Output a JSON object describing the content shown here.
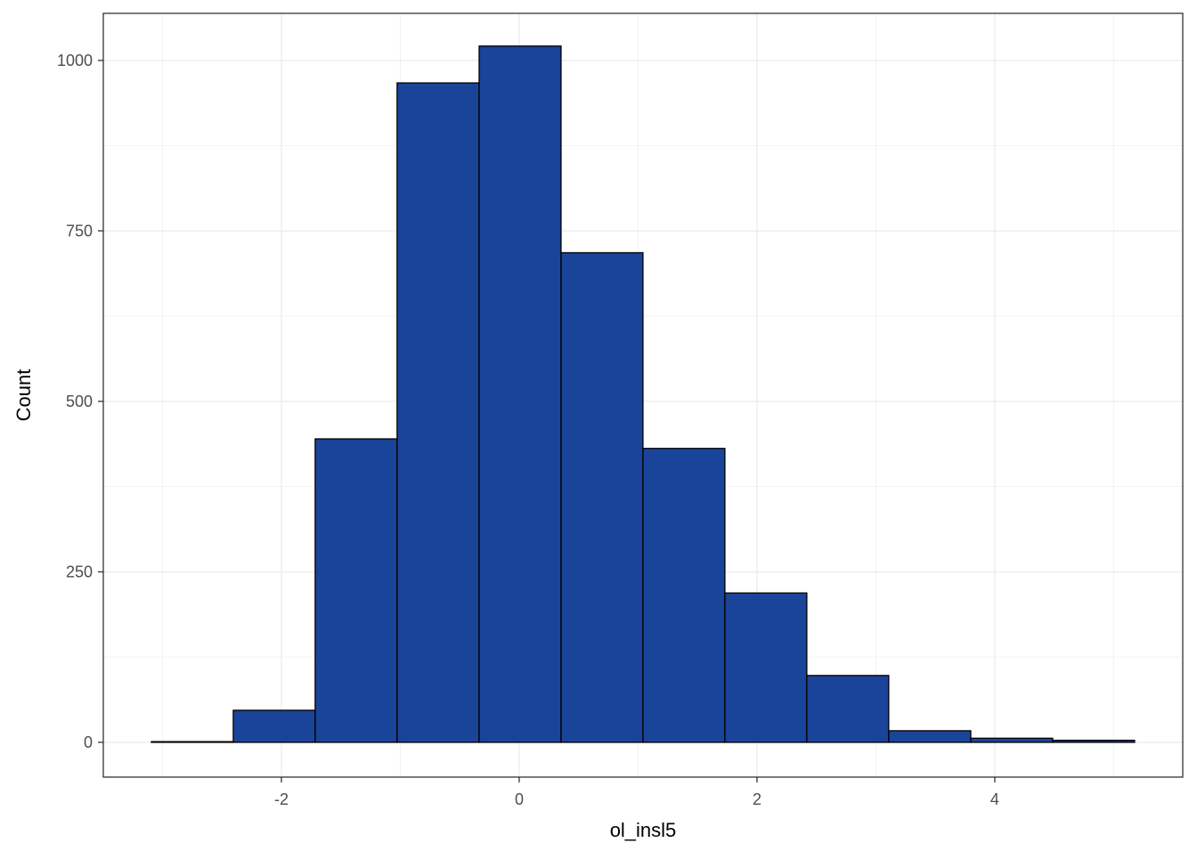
{
  "chart_data": {
    "type": "histogram",
    "x_label": "ol_insl5",
    "y_label": "Count",
    "bins": [
      -3.094,
      -2.405,
      -1.716,
      -1.027,
      -0.337,
      0.352,
      1.041,
      1.73,
      2.419,
      3.108,
      3.798,
      4.487,
      5.176
    ],
    "values": [
      1,
      47,
      445,
      967,
      1021,
      718,
      431,
      219,
      98,
      17,
      6,
      3
    ],
    "color": "#1a4499",
    "xlim": [
      -3.498,
      5.581
    ],
    "ylim": [
      -51,
      1069
    ],
    "xticks": [
      -2,
      0,
      2,
      4
    ],
    "yticks": [
      0,
      250,
      500,
      750,
      1000
    ],
    "grid": true
  }
}
